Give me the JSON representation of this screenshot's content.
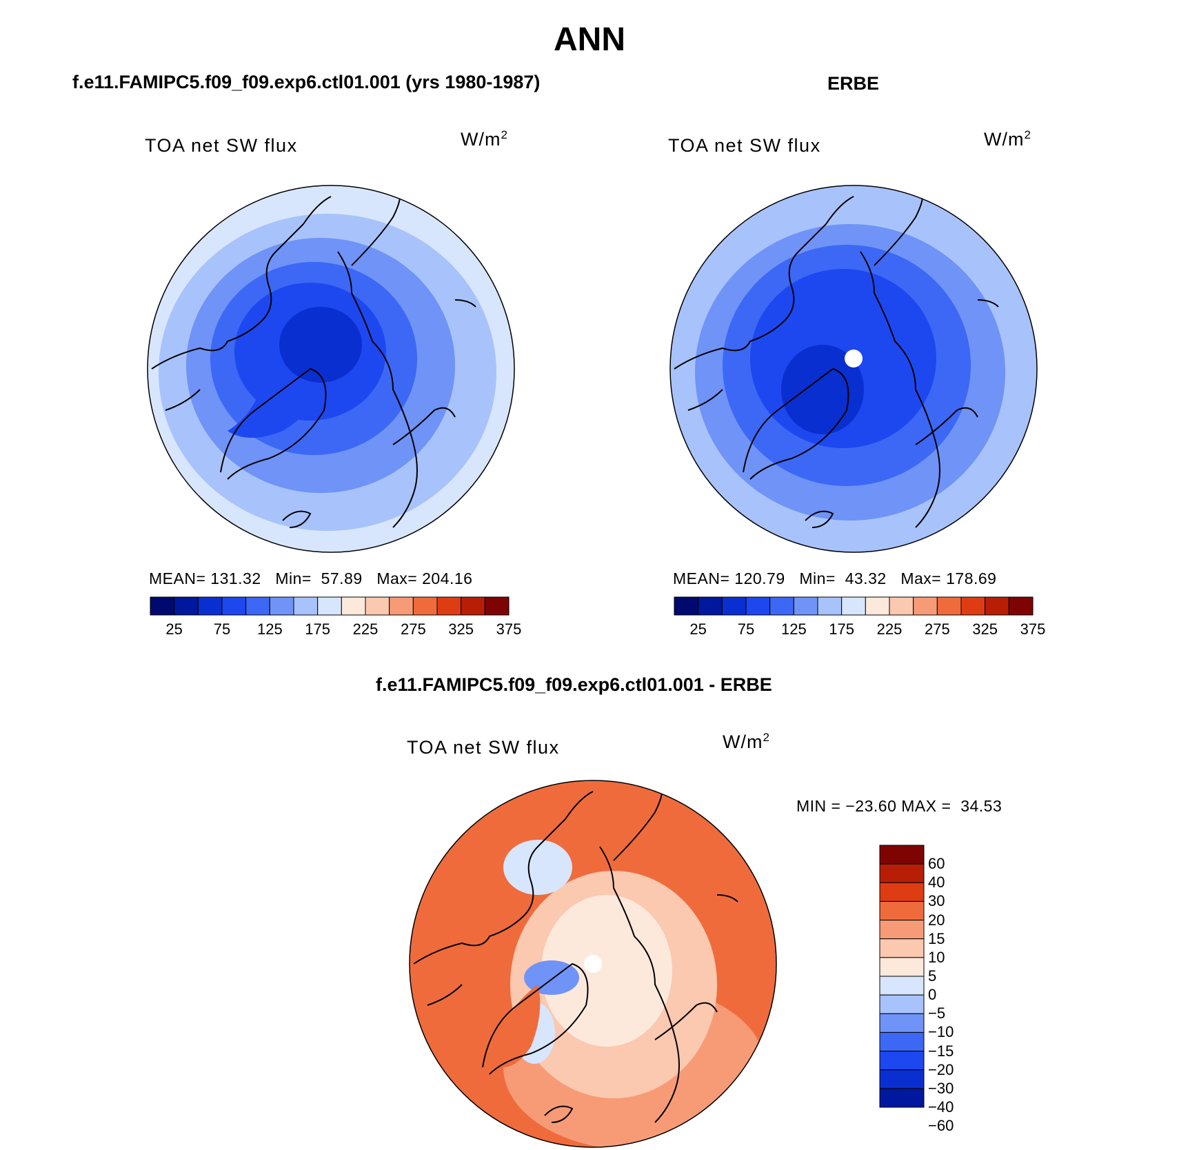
{
  "page": {
    "title": "ANN",
    "left_header": "f.e11.FAMIPC5.f09_f09.exp6.ctl01.001 (yrs 1980-1987)",
    "right_header": "ERBE",
    "diff_header": "f.e11.FAMIPC5.f09_f09.exp6.ctl01.001 - ERBE"
  },
  "panels": {
    "model": {
      "variable": "TOA net SW flux",
      "units_base": "W/m",
      "units_exp": "2",
      "mean_label": "MEAN=",
      "mean": "131.32",
      "min_label": "Min=",
      "min": "57.89",
      "max_label": "Max=",
      "max": "204.16"
    },
    "obs": {
      "variable": "TOA net SW flux",
      "units_base": "W/m",
      "units_exp": "2",
      "mean_label": "MEAN=",
      "mean": "120.79",
      "min_label": "Min=",
      "min": "43.32",
      "max_label": "Max=",
      "max": "178.69"
    },
    "diff": {
      "variable": "TOA net SW flux",
      "units_base": "W/m",
      "units_exp": "2",
      "minmax": "MIN = −23.60 MAX =  34.53"
    }
  },
  "colorbars": {
    "abs": {
      "colors": [
        "#000a6e",
        "#00189e",
        "#0a2fd0",
        "#1d48f0",
        "#3c68f5",
        "#6f93f7",
        "#a8c2fb",
        "#d7e6fc",
        "#fde9dc",
        "#fbc8b0",
        "#f79b77",
        "#ef6b3c",
        "#de3c12",
        "#b81e06",
        "#7e0404"
      ],
      "labels": [
        "25",
        "75",
        "125",
        "175",
        "225",
        "275",
        "325",
        "375"
      ]
    },
    "diff": {
      "colors": [
        "#7e0404",
        "#b81e06",
        "#de3c12",
        "#ef6b3c",
        "#f79b77",
        "#fbc8b0",
        "#fde9dc",
        "#d7e6fc",
        "#a8c2fb",
        "#6f93f7",
        "#3c68f5",
        "#1d48f0",
        "#0a2fd0",
        "#00189e"
      ],
      "labels": [
        "60",
        "40",
        "30",
        "20",
        "15",
        "10",
        "5",
        "0",
        "−5",
        "−10",
        "−15",
        "−20",
        "−30",
        "−40",
        "−60"
      ]
    }
  },
  "map_colors": {
    "model": [
      "#d7e6fc",
      "#a8c2fb",
      "#6f93f7",
      "#3c68f5",
      "#1d48f0",
      "#0a2fd0"
    ],
    "obs": [
      "#a8c2fb",
      "#6f93f7",
      "#3c68f5",
      "#1d48f0",
      "#0a2fd0"
    ],
    "diff": [
      "#ef6b3c",
      "#f79b77",
      "#fbc8b0",
      "#fde9dc",
      "#d7e6fc",
      "#6f93f7"
    ]
  }
}
